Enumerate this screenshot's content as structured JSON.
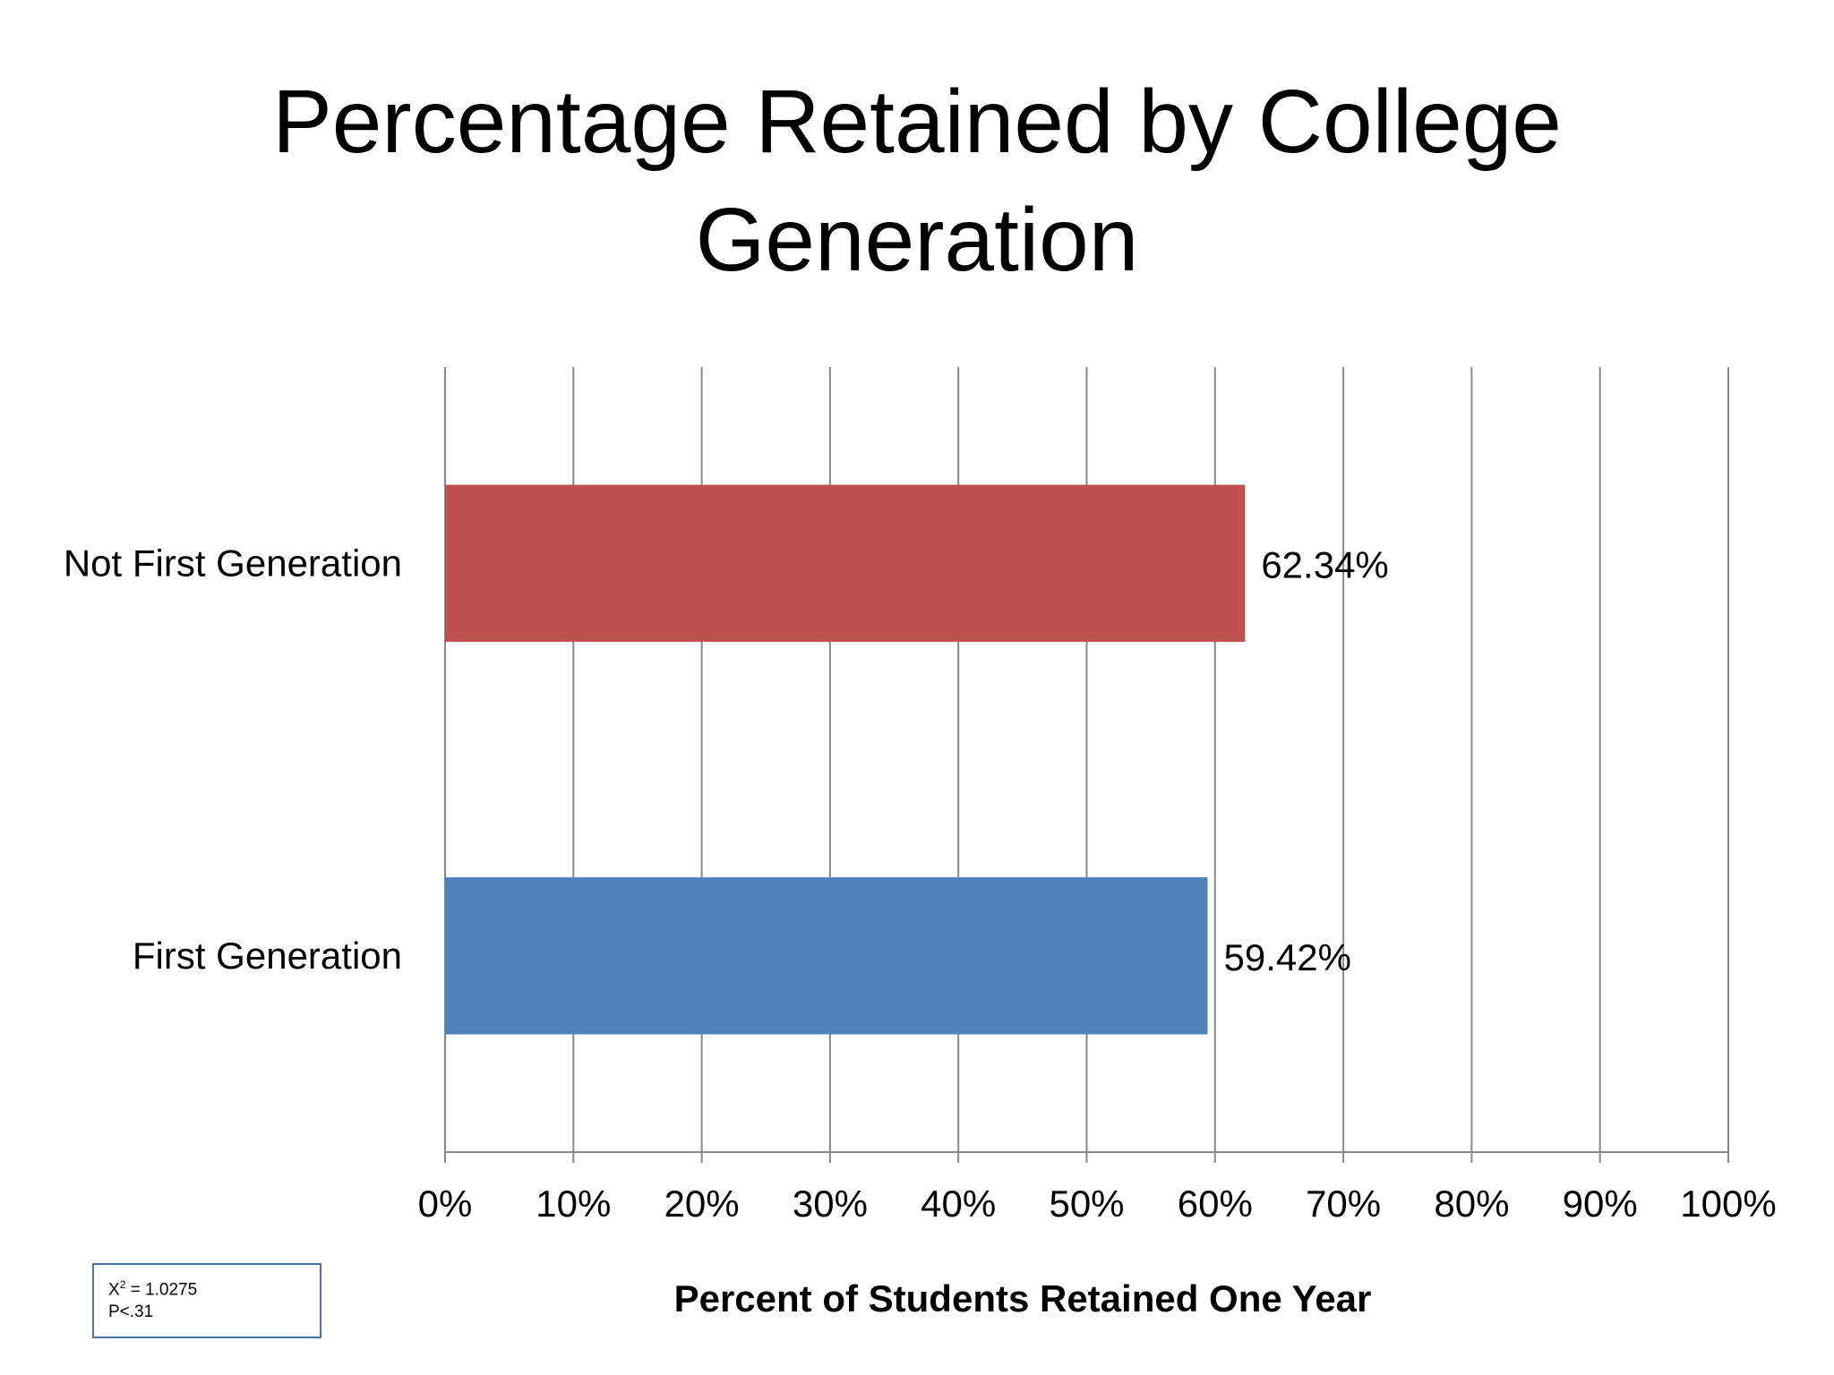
{
  "chart_data": {
    "type": "bar",
    "orientation": "horizontal",
    "title_lines": [
      "Percentage Retained by College",
      "Generation"
    ],
    "xlabel": "Percent of Students Retained One Year",
    "ylabel": "",
    "xlim": [
      0,
      100
    ],
    "x_ticks": [
      0,
      10,
      20,
      30,
      40,
      50,
      60,
      70,
      80,
      90,
      100
    ],
    "x_tick_labels": [
      "0%",
      "10%",
      "20%",
      "30%",
      "40%",
      "50%",
      "60%",
      "70%",
      "80%",
      "90%",
      "100%"
    ],
    "grid": true,
    "legend": "none",
    "categories": [
      "Not First Generation",
      "First Generation"
    ],
    "values": [
      62.34,
      59.42
    ],
    "data_labels": [
      "62.34%",
      "59.42%"
    ],
    "colors": [
      "#c0504d",
      "#4f81bd"
    ],
    "annotation": {
      "line1_prefix": "X",
      "line1_sup": "2",
      "line1_suffix": " = 1.0275",
      "line2": "P<.31"
    }
  }
}
